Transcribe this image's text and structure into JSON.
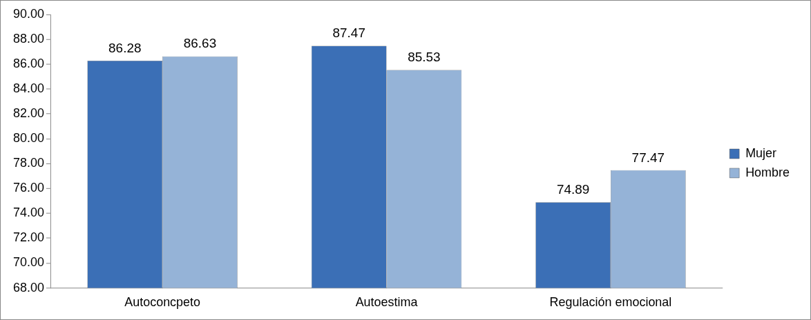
{
  "chart_data": {
    "type": "bar",
    "categories": [
      "Autoconcpeto",
      "Autoestima",
      "Regulación emocional"
    ],
    "series": [
      {
        "name": "Mujer",
        "color": "#3b6fb6",
        "values": [
          86.28,
          87.47,
          74.89
        ]
      },
      {
        "name": "Hombre",
        "color": "#95b3d7",
        "values": [
          86.63,
          85.53,
          77.47
        ]
      }
    ],
    "ylim": [
      68,
      90
    ],
    "yticks": [
      {
        "value": 68,
        "label": "68.00"
      },
      {
        "value": 70,
        "label": "70.00"
      },
      {
        "value": 72,
        "label": "72.00"
      },
      {
        "value": 74,
        "label": "74.00"
      },
      {
        "value": 76,
        "label": "76.00"
      },
      {
        "value": 78,
        "label": "78.00"
      },
      {
        "value": 80,
        "label": "80.00"
      },
      {
        "value": 82,
        "label": "82.00"
      },
      {
        "value": 84,
        "label": "84.00"
      },
      {
        "value": 86,
        "label": "86.00"
      },
      {
        "value": 88,
        "label": "88.00"
      },
      {
        "value": 90,
        "label": "90.00"
      }
    ],
    "grid": false,
    "legend": "right",
    "data_labels": true
  }
}
